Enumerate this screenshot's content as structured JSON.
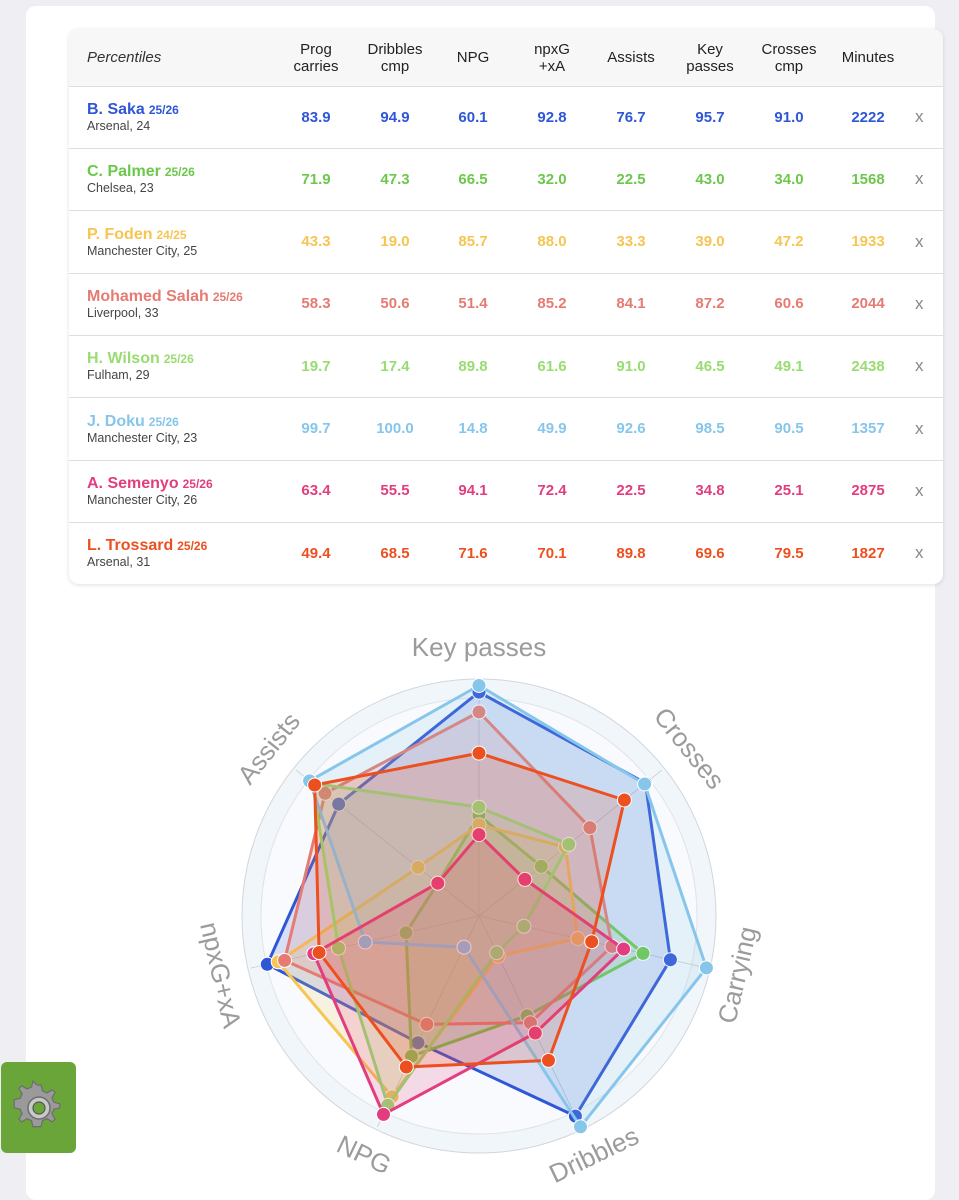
{
  "table": {
    "title": "Percentiles",
    "columns": [
      {
        "key": "prog",
        "lines": [
          "Prog",
          "carries"
        ]
      },
      {
        "key": "drib",
        "lines": [
          "Dribbles",
          "cmp"
        ]
      },
      {
        "key": "npg",
        "lines": [
          "NPG"
        ]
      },
      {
        "key": "npxg",
        "lines": [
          "npxG",
          "+xA"
        ]
      },
      {
        "key": "ast",
        "lines": [
          "Assists"
        ]
      },
      {
        "key": "kp",
        "lines": [
          "Key",
          "passes"
        ]
      },
      {
        "key": "cross",
        "lines": [
          "Crosses",
          "cmp"
        ]
      },
      {
        "key": "min",
        "lines": [
          "Minutes"
        ]
      }
    ],
    "remove_label": "x"
  },
  "players": [
    {
      "name": "B. Saka",
      "season": "25/26",
      "club": "Arsenal, 24",
      "color": "#2f56d6",
      "values": [
        "83.9",
        "94.9",
        "60.1",
        "92.8",
        "76.7",
        "95.7",
        "91.0",
        "2222"
      ]
    },
    {
      "name": "C. Palmer",
      "season": "25/26",
      "club": "Chelsea, 23",
      "color": "#6bc84b",
      "values": [
        "71.9",
        "47.3",
        "66.5",
        "32.0",
        "22.5",
        "43.0",
        "34.0",
        "1568"
      ]
    },
    {
      "name": "P. Foden",
      "season": "24/25",
      "club": "Manchester City, 25",
      "color": "#f6c552",
      "values": [
        "43.3",
        "19.0",
        "85.7",
        "88.0",
        "33.3",
        "39.0",
        "47.2",
        "1933"
      ]
    },
    {
      "name": "Mohamed Salah",
      "season": "25/26",
      "club": "Liverpool, 33",
      "color": "#e57b73",
      "values": [
        "58.3",
        "50.6",
        "51.4",
        "85.2",
        "84.1",
        "87.2",
        "60.6",
        "2044"
      ]
    },
    {
      "name": "H. Wilson",
      "season": "25/26",
      "club": "Fulham, 29",
      "color": "#98dc72",
      "values": [
        "19.7",
        "17.4",
        "89.8",
        "61.6",
        "91.0",
        "46.5",
        "49.1",
        "2438"
      ]
    },
    {
      "name": "J. Doku",
      "season": "25/26",
      "club": "Manchester City, 23",
      "color": "#86c6ea",
      "values": [
        "99.7",
        "100.0",
        "14.8",
        "49.9",
        "92.6",
        "98.5",
        "90.5",
        "1357"
      ]
    },
    {
      "name": "A. Semenyo",
      "season": "25/26",
      "club": "Manchester City, 26",
      "color": "#e23d7f",
      "values": [
        "63.4",
        "55.5",
        "94.1",
        "72.4",
        "22.5",
        "34.8",
        "25.1",
        "2875"
      ]
    },
    {
      "name": "L. Trossard",
      "season": "25/26",
      "club": "Arsenal, 31",
      "color": "#ec5020",
      "values": [
        "49.4",
        "68.5",
        "71.6",
        "70.1",
        "89.8",
        "69.6",
        "79.5",
        "1827"
      ]
    }
  ],
  "chart_data": {
    "type": "radar",
    "axes": [
      "Key passes",
      "Crosses",
      "Carrying",
      "Dribbles",
      "NPG",
      "npxG+xA",
      "Assists"
    ],
    "range": [
      0,
      100
    ],
    "series": [
      {
        "name": "B. Saka",
        "color": "#2f56d6",
        "values": [
          95.7,
          91.0,
          83.9,
          94.9,
          60.1,
          92.8,
          76.7
        ]
      },
      {
        "name": "C. Palmer",
        "color": "#6bc84b",
        "values": [
          43.0,
          34.0,
          71.9,
          47.3,
          66.5,
          32.0,
          22.5
        ]
      },
      {
        "name": "P. Foden",
        "color": "#f6c552",
        "values": [
          39.0,
          47.2,
          43.3,
          19.0,
          85.7,
          88.0,
          33.3
        ]
      },
      {
        "name": "Mohamed Salah",
        "color": "#e57b73",
        "values": [
          87.2,
          60.6,
          58.3,
          50.6,
          51.4,
          85.2,
          84.1
        ]
      },
      {
        "name": "H. Wilson",
        "color": "#98dc72",
        "values": [
          46.5,
          49.1,
          19.7,
          17.4,
          89.8,
          61.6,
          91.0
        ]
      },
      {
        "name": "J. Doku",
        "color": "#86c6ea",
        "values": [
          98.5,
          90.5,
          99.7,
          100.0,
          14.8,
          49.9,
          92.6
        ]
      },
      {
        "name": "A. Semenyo",
        "color": "#e23d7f",
        "values": [
          34.8,
          25.1,
          63.4,
          55.5,
          94.1,
          72.4,
          22.5
        ]
      },
      {
        "name": "L. Trossard",
        "color": "#ec5020",
        "values": [
          69.6,
          79.5,
          49.4,
          68.5,
          71.6,
          70.1,
          89.8
        ]
      }
    ]
  },
  "settings": {
    "icon": "gear-icon"
  }
}
